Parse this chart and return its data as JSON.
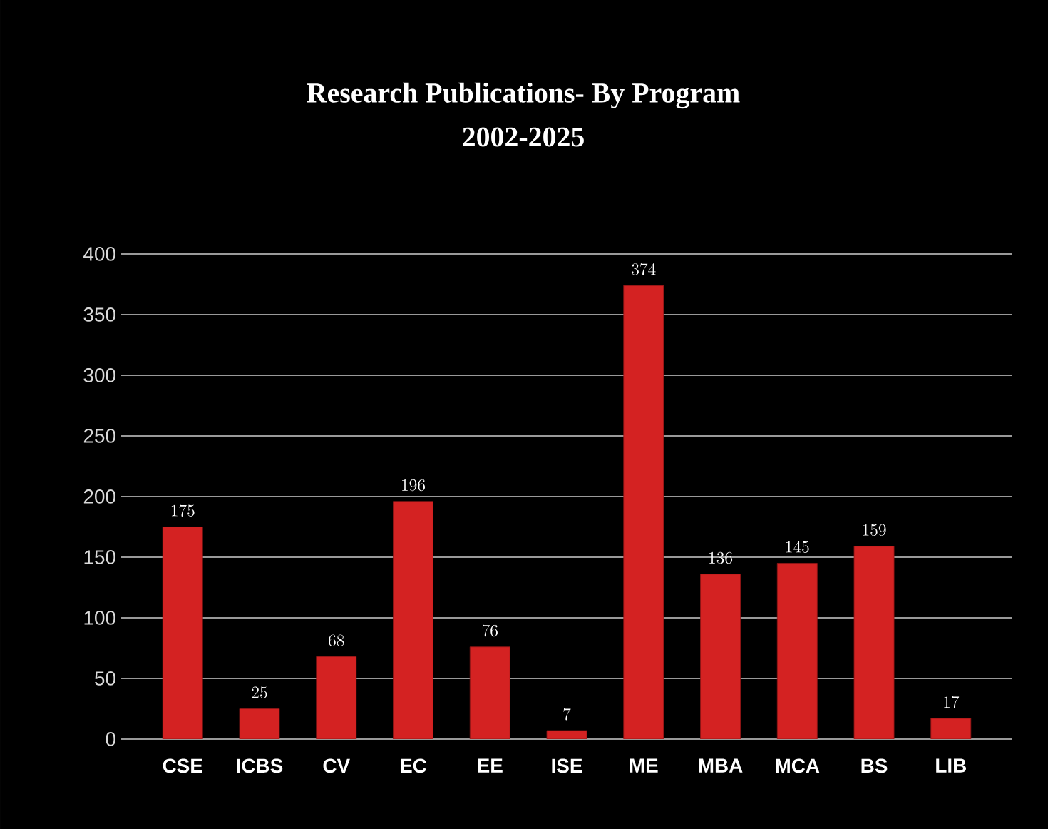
{
  "chart_data": {
    "type": "bar",
    "title": "Research Publications- By Program",
    "subtitle": "2002-2025",
    "categories": [
      "CSE",
      "ICBS",
      "CV",
      "EC",
      "EE",
      "ISE",
      "ME",
      "MBA",
      "MCA",
      "BS",
      "LIB"
    ],
    "values": [
      175,
      25,
      68,
      196,
      76,
      7,
      374,
      136,
      145,
      159,
      17
    ],
    "color": "#d42222",
    "ylim": [
      0,
      400
    ],
    "yticks": [
      0,
      50,
      100,
      150,
      200,
      250,
      300,
      350,
      400
    ],
    "grid": "y",
    "data_labels": true
  }
}
